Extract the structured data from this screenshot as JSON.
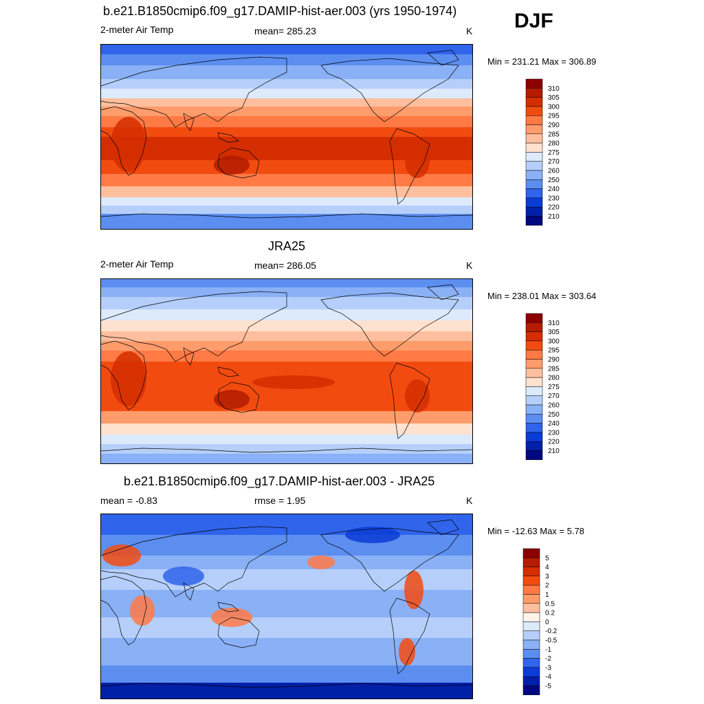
{
  "season": "DJF",
  "units": "K",
  "panels": [
    {
      "title": "b.e21.B1850cmip6.f09_g17.DAMIP-hist-aer.003 (yrs 1950-1974)",
      "left_label": "2-meter Air Temp",
      "center_label": "mean= 285.23",
      "right_label": "K",
      "minmax": "Min = 231.21 Max = 306.89",
      "field": "model"
    },
    {
      "title": "JRA25",
      "left_label": "2-meter Air Temp",
      "center_label": "mean= 286.05",
      "right_label": "K",
      "minmax": "Min = 238.01 Max = 303.64",
      "field": "obs"
    },
    {
      "title": "b.e21.B1850cmip6.f09_g17.DAMIP-hist-aer.003 - JRA25",
      "left_label": "mean =  -0.83",
      "center_label": "rmse =   1.95",
      "right_label": "K",
      "minmax": "Min = -12.63 Max =   5.78",
      "field": "diff"
    }
  ],
  "colorbars": {
    "abs": {
      "labels": [
        "310",
        "305",
        "300",
        "295",
        "290",
        "285",
        "280",
        "275",
        "270",
        "260",
        "250",
        "240",
        "230",
        "220",
        "210"
      ],
      "colors": [
        "#8b0000",
        "#b31c00",
        "#d42e00",
        "#f24b10",
        "#ff7a45",
        "#ff9c6b",
        "#ffbf9e",
        "#ffe1cf",
        "#dceafc",
        "#b5cffa",
        "#8ab0f5",
        "#5c8ef0",
        "#2f64eb",
        "#0a3cd6",
        "#0020a8",
        "#000880"
      ]
    },
    "diff": {
      "labels": [
        "5",
        "4",
        "3",
        "2",
        "1",
        "0.5",
        "0.2",
        "0",
        "-0.2",
        "-0.5",
        "-1",
        "-2",
        "-3",
        "-4",
        "-5"
      ],
      "colors": [
        "#8b0000",
        "#b31c00",
        "#d42e00",
        "#f24b10",
        "#ff7a45",
        "#ff9c6b",
        "#ffbf9e",
        "#fff3ea",
        "#dceafc",
        "#b5cffa",
        "#8ab0f5",
        "#5c8ef0",
        "#2f64eb",
        "#0a3cd6",
        "#0020a8",
        "#000880"
      ]
    }
  }
}
